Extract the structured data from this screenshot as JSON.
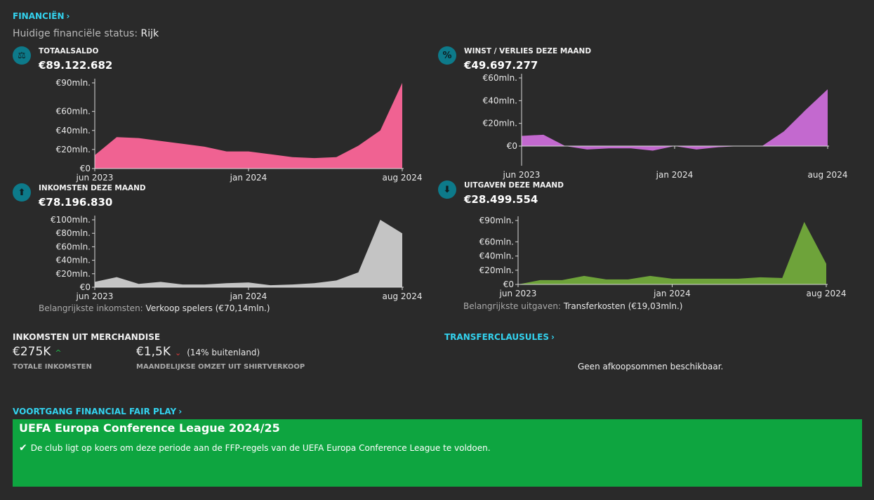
{
  "header": {
    "finance_link": "FINANCIËN",
    "status_label": "Huidige financiële status:",
    "status_value": "Rijk"
  },
  "panels": {
    "balance": {
      "title": "TOTAALSALDO",
      "value": "€89.122.682",
      "icon": "balance-scale-icon"
    },
    "profit": {
      "title": "WINST / VERLIES DEZE MAAND",
      "value": "€49.697.277",
      "icon": "percent-icon"
    },
    "income": {
      "title": "INKOMSTEN DEZE MAAND",
      "value": "€78.196.830",
      "icon": "arrow-up-icon",
      "note_label": "Belangrijkste inkomsten:",
      "note_value": "Verkoop spelers (€70,14mln.)"
    },
    "expenses": {
      "title": "UITGAVEN DEZE MAAND",
      "value": "€28.499.554",
      "icon": "arrow-down-icon",
      "note_label": "Belangrijkste uitgaven:",
      "note_value": "Transferkosten (€19,03mln.)"
    }
  },
  "chart_data": [
    {
      "id": "balance",
      "type": "area",
      "color": "#f06292",
      "x": [
        "jun 2023",
        "jul 2023",
        "aug 2023",
        "sep 2023",
        "okt 2023",
        "nov 2023",
        "dec 2023",
        "jan 2024",
        "feb 2024",
        "mrt 2024",
        "apr 2024",
        "mei 2024",
        "jun 2024",
        "jul 2024",
        "aug 2024"
      ],
      "values": [
        14,
        33,
        32,
        29,
        26,
        23,
        18,
        18,
        15,
        12,
        11,
        12,
        24,
        40,
        90
      ],
      "ylim": [
        0,
        90
      ],
      "yticks": [
        0,
        20,
        40,
        60,
        90
      ],
      "ytick_labels": [
        "€0",
        "€20mln.",
        "€40mln.",
        "€60mln.",
        "€90mln."
      ],
      "xtick_labels": [
        "jun 2023",
        "jan 2024",
        "aug 2024"
      ]
    },
    {
      "id": "profit",
      "type": "area",
      "color": "#c369cf",
      "x": [
        "jun 2023",
        "jul 2023",
        "aug 2023",
        "sep 2023",
        "okt 2023",
        "nov 2023",
        "dec 2023",
        "jan 2024",
        "feb 2024",
        "mrt 2024",
        "apr 2024",
        "mei 2024",
        "jun 2024",
        "jul 2024",
        "aug 2024"
      ],
      "values": [
        9,
        10,
        0,
        -3,
        -2,
        -2,
        -4,
        0,
        -3,
        -1,
        0,
        0,
        13,
        32,
        50
      ],
      "ylim": [
        -18,
        60
      ],
      "yticks": [
        0,
        20,
        40,
        60
      ],
      "ytick_labels": [
        "€0",
        "€20mln.",
        "€40mln.",
        "€60mln."
      ],
      "xtick_labels": [
        "jun 2023",
        "jan 2024",
        "aug 2024"
      ]
    },
    {
      "id": "income",
      "type": "area",
      "color": "#c4c4c4",
      "x": [
        "jun 2023",
        "jul 2023",
        "aug 2023",
        "sep 2023",
        "okt 2023",
        "nov 2023",
        "dec 2023",
        "jan 2024",
        "feb 2024",
        "mrt 2024",
        "apr 2024",
        "mei 2024",
        "jun 2024",
        "jul 2024",
        "aug 2024"
      ],
      "values": [
        8,
        15,
        5,
        8,
        4,
        4,
        6,
        7,
        3,
        4,
        6,
        10,
        22,
        100,
        80
      ],
      "ylim": [
        0,
        100
      ],
      "yticks": [
        0,
        20,
        40,
        60,
        80,
        100
      ],
      "ytick_labels": [
        "€0",
        "€20mln.",
        "€40mln.",
        "€60mln.",
        "€80mln.",
        "€100mln."
      ],
      "xtick_labels": [
        "jun 2023",
        "jan 2024",
        "aug 2024"
      ]
    },
    {
      "id": "expenses",
      "type": "area",
      "color": "#6ea33a",
      "x": [
        "jun 2023",
        "jul 2023",
        "aug 2023",
        "sep 2023",
        "okt 2023",
        "nov 2023",
        "dec 2023",
        "jan 2024",
        "feb 2024",
        "mrt 2024",
        "apr 2024",
        "mei 2024",
        "jun 2024",
        "jul 2024",
        "aug 2024"
      ],
      "values": [
        0,
        6,
        6,
        12,
        7,
        7,
        12,
        8,
        8,
        8,
        8,
        10,
        9,
        88,
        29
      ],
      "ylim": [
        0,
        90
      ],
      "yticks": [
        0,
        20,
        40,
        60,
        90
      ],
      "ytick_labels": [
        "€0",
        "€20mln.",
        "€40mln.",
        "€60mln.",
        "€90mln."
      ],
      "xtick_labels": [
        "jun 2023",
        "jan 2024",
        "aug 2024"
      ]
    }
  ],
  "merchandise": {
    "title": "INKOMSTEN UIT MERCHANDISE",
    "total_value": "€275K",
    "total_caption": "TOTALE INKOMSTEN",
    "shirt_value": "€1,5K",
    "shirt_note": "(14% buitenland)",
    "shirt_caption": "MAANDELIJKSE OMZET UIT SHIRTVERKOOP"
  },
  "transfer": {
    "link": "TRANSFERCLAUSULES",
    "empty_text": "Geen afkoopsommen beschikbaar."
  },
  "ffp": {
    "link": "VOORTGANG FINANCIAL FAIR PLAY",
    "competition": "UEFA Europa Conference League 2024/25",
    "message": "De club ligt op koers om deze periode aan de FFP-regels van de UEFA Europa Conference League te voldoen."
  }
}
